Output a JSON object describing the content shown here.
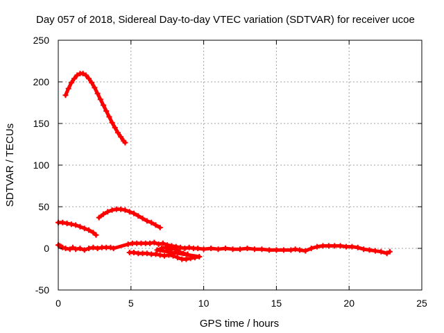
{
  "chart_data": {
    "type": "scatter",
    "title": "Day 057 of 2018, Sidereal Day-to-day VTEC variation (SDTVAR) for receiver ucoe",
    "xlabel": "GPS time / hours",
    "ylabel": "SDTVAR / TECUs",
    "xlim": [
      0,
      25
    ],
    "ylim": [
      -50,
      250
    ],
    "xticks": [
      0,
      5,
      10,
      15,
      20,
      25
    ],
    "yticks": [
      -50,
      0,
      50,
      100,
      150,
      200,
      250
    ],
    "grid": true,
    "marker": "plus",
    "color": "#ff0000",
    "series": [
      {
        "name": "arc-high",
        "points": [
          [
            0.5,
            184
          ],
          [
            0.7,
            192
          ],
          [
            0.9,
            199
          ],
          [
            1.1,
            204
          ],
          [
            1.3,
            208
          ],
          [
            1.5,
            210
          ],
          [
            1.7,
            210
          ],
          [
            1.9,
            208
          ],
          [
            2.1,
            204
          ],
          [
            2.3,
            199
          ],
          [
            2.5,
            193
          ],
          [
            2.7,
            186
          ],
          [
            2.9,
            179
          ],
          [
            3.1,
            172
          ],
          [
            3.3,
            165
          ],
          [
            3.5,
            158
          ],
          [
            3.7,
            151
          ],
          [
            3.9,
            145
          ],
          [
            4.1,
            139
          ],
          [
            4.3,
            134
          ],
          [
            4.5,
            129
          ],
          [
            4.6,
            127
          ]
        ]
      },
      {
        "name": "arc-mid",
        "points": [
          [
            2.8,
            37
          ],
          [
            3.1,
            41
          ],
          [
            3.4,
            44
          ],
          [
            3.7,
            46
          ],
          [
            4.0,
            47
          ],
          [
            4.3,
            47
          ],
          [
            4.6,
            46
          ],
          [
            4.9,
            44
          ],
          [
            5.2,
            42
          ],
          [
            5.5,
            39
          ],
          [
            5.8,
            36
          ],
          [
            6.1,
            33
          ],
          [
            6.4,
            31
          ],
          [
            6.7,
            28
          ],
          [
            7.0,
            25
          ]
        ]
      },
      {
        "name": "arc-low-left",
        "points": [
          [
            0.0,
            31
          ],
          [
            0.3,
            31
          ],
          [
            0.6,
            30
          ],
          [
            0.9,
            29
          ],
          [
            1.2,
            28
          ],
          [
            1.5,
            26
          ],
          [
            1.8,
            24
          ],
          [
            2.1,
            22
          ],
          [
            2.4,
            19
          ],
          [
            2.6,
            16
          ]
        ]
      },
      {
        "name": "cluster-near-zero",
        "points": [
          [
            0.0,
            4
          ],
          [
            0.1,
            3
          ],
          [
            0.2,
            2
          ],
          [
            0.3,
            1
          ],
          [
            0.5,
            0
          ],
          [
            0.8,
            -1
          ],
          [
            1.0,
            1
          ],
          [
            1.2,
            -1
          ],
          [
            1.5,
            0
          ],
          [
            1.8,
            -2
          ],
          [
            2.1,
            0
          ],
          [
            2.4,
            1
          ],
          [
            2.7,
            0
          ],
          [
            3.0,
            1
          ],
          [
            3.3,
            1
          ],
          [
            3.6,
            1
          ],
          [
            3.8,
            0
          ],
          [
            4.8,
            5
          ],
          [
            5.1,
            6
          ],
          [
            5.4,
            6
          ],
          [
            5.7,
            6
          ],
          [
            6.0,
            6
          ],
          [
            6.3,
            6
          ],
          [
            6.6,
            7
          ],
          [
            6.9,
            5
          ],
          [
            7.2,
            6
          ],
          [
            7.5,
            4
          ],
          [
            7.8,
            3
          ],
          [
            8.1,
            2
          ],
          [
            8.4,
            1
          ],
          [
            8.7,
            0
          ],
          [
            9.0,
            1
          ],
          [
            9.3,
            0
          ],
          [
            9.6,
            0
          ],
          [
            10.0,
            -1
          ],
          [
            10.5,
            0
          ],
          [
            11.0,
            -1
          ],
          [
            11.5,
            0
          ],
          [
            12.0,
            -1
          ],
          [
            12.5,
            -1
          ],
          [
            13.0,
            0
          ],
          [
            13.5,
            -1
          ],
          [
            14.0,
            -1
          ],
          [
            14.5,
            -2
          ],
          [
            15.0,
            -2
          ],
          [
            15.5,
            -2
          ],
          [
            16.0,
            -2
          ],
          [
            16.3,
            -1
          ],
          [
            16.6,
            -2
          ],
          [
            17.0,
            -3
          ],
          [
            17.4,
            0
          ],
          [
            17.8,
            2
          ],
          [
            18.2,
            3
          ],
          [
            18.6,
            3
          ],
          [
            19.0,
            3
          ],
          [
            19.4,
            3
          ],
          [
            19.8,
            2
          ],
          [
            20.2,
            2
          ],
          [
            20.6,
            1
          ],
          [
            21.0,
            -1
          ],
          [
            21.4,
            -2
          ],
          [
            21.8,
            -3
          ],
          [
            22.2,
            -4
          ],
          [
            22.6,
            -6
          ],
          [
            22.8,
            -4
          ]
        ]
      },
      {
        "name": "cluster-negative",
        "points": [
          [
            4.9,
            -5
          ],
          [
            5.2,
            -5
          ],
          [
            5.5,
            -6
          ],
          [
            5.8,
            -6
          ],
          [
            6.1,
            -6
          ],
          [
            6.4,
            -7
          ],
          [
            6.7,
            -7
          ],
          [
            7.0,
            -8
          ],
          [
            7.3,
            -9
          ],
          [
            7.6,
            -8
          ],
          [
            7.9,
            -9
          ],
          [
            8.2,
            -11
          ],
          [
            8.5,
            -13
          ],
          [
            8.8,
            -13
          ],
          [
            9.1,
            -12
          ],
          [
            9.4,
            -11
          ],
          [
            9.7,
            -10
          ],
          [
            6.8,
            -2
          ],
          [
            7.1,
            0
          ],
          [
            7.4,
            1
          ],
          [
            7.7,
            -1
          ],
          [
            8.0,
            0
          ],
          [
            8.3,
            -4
          ],
          [
            8.6,
            -6
          ],
          [
            8.9,
            -7
          ]
        ]
      }
    ]
  }
}
